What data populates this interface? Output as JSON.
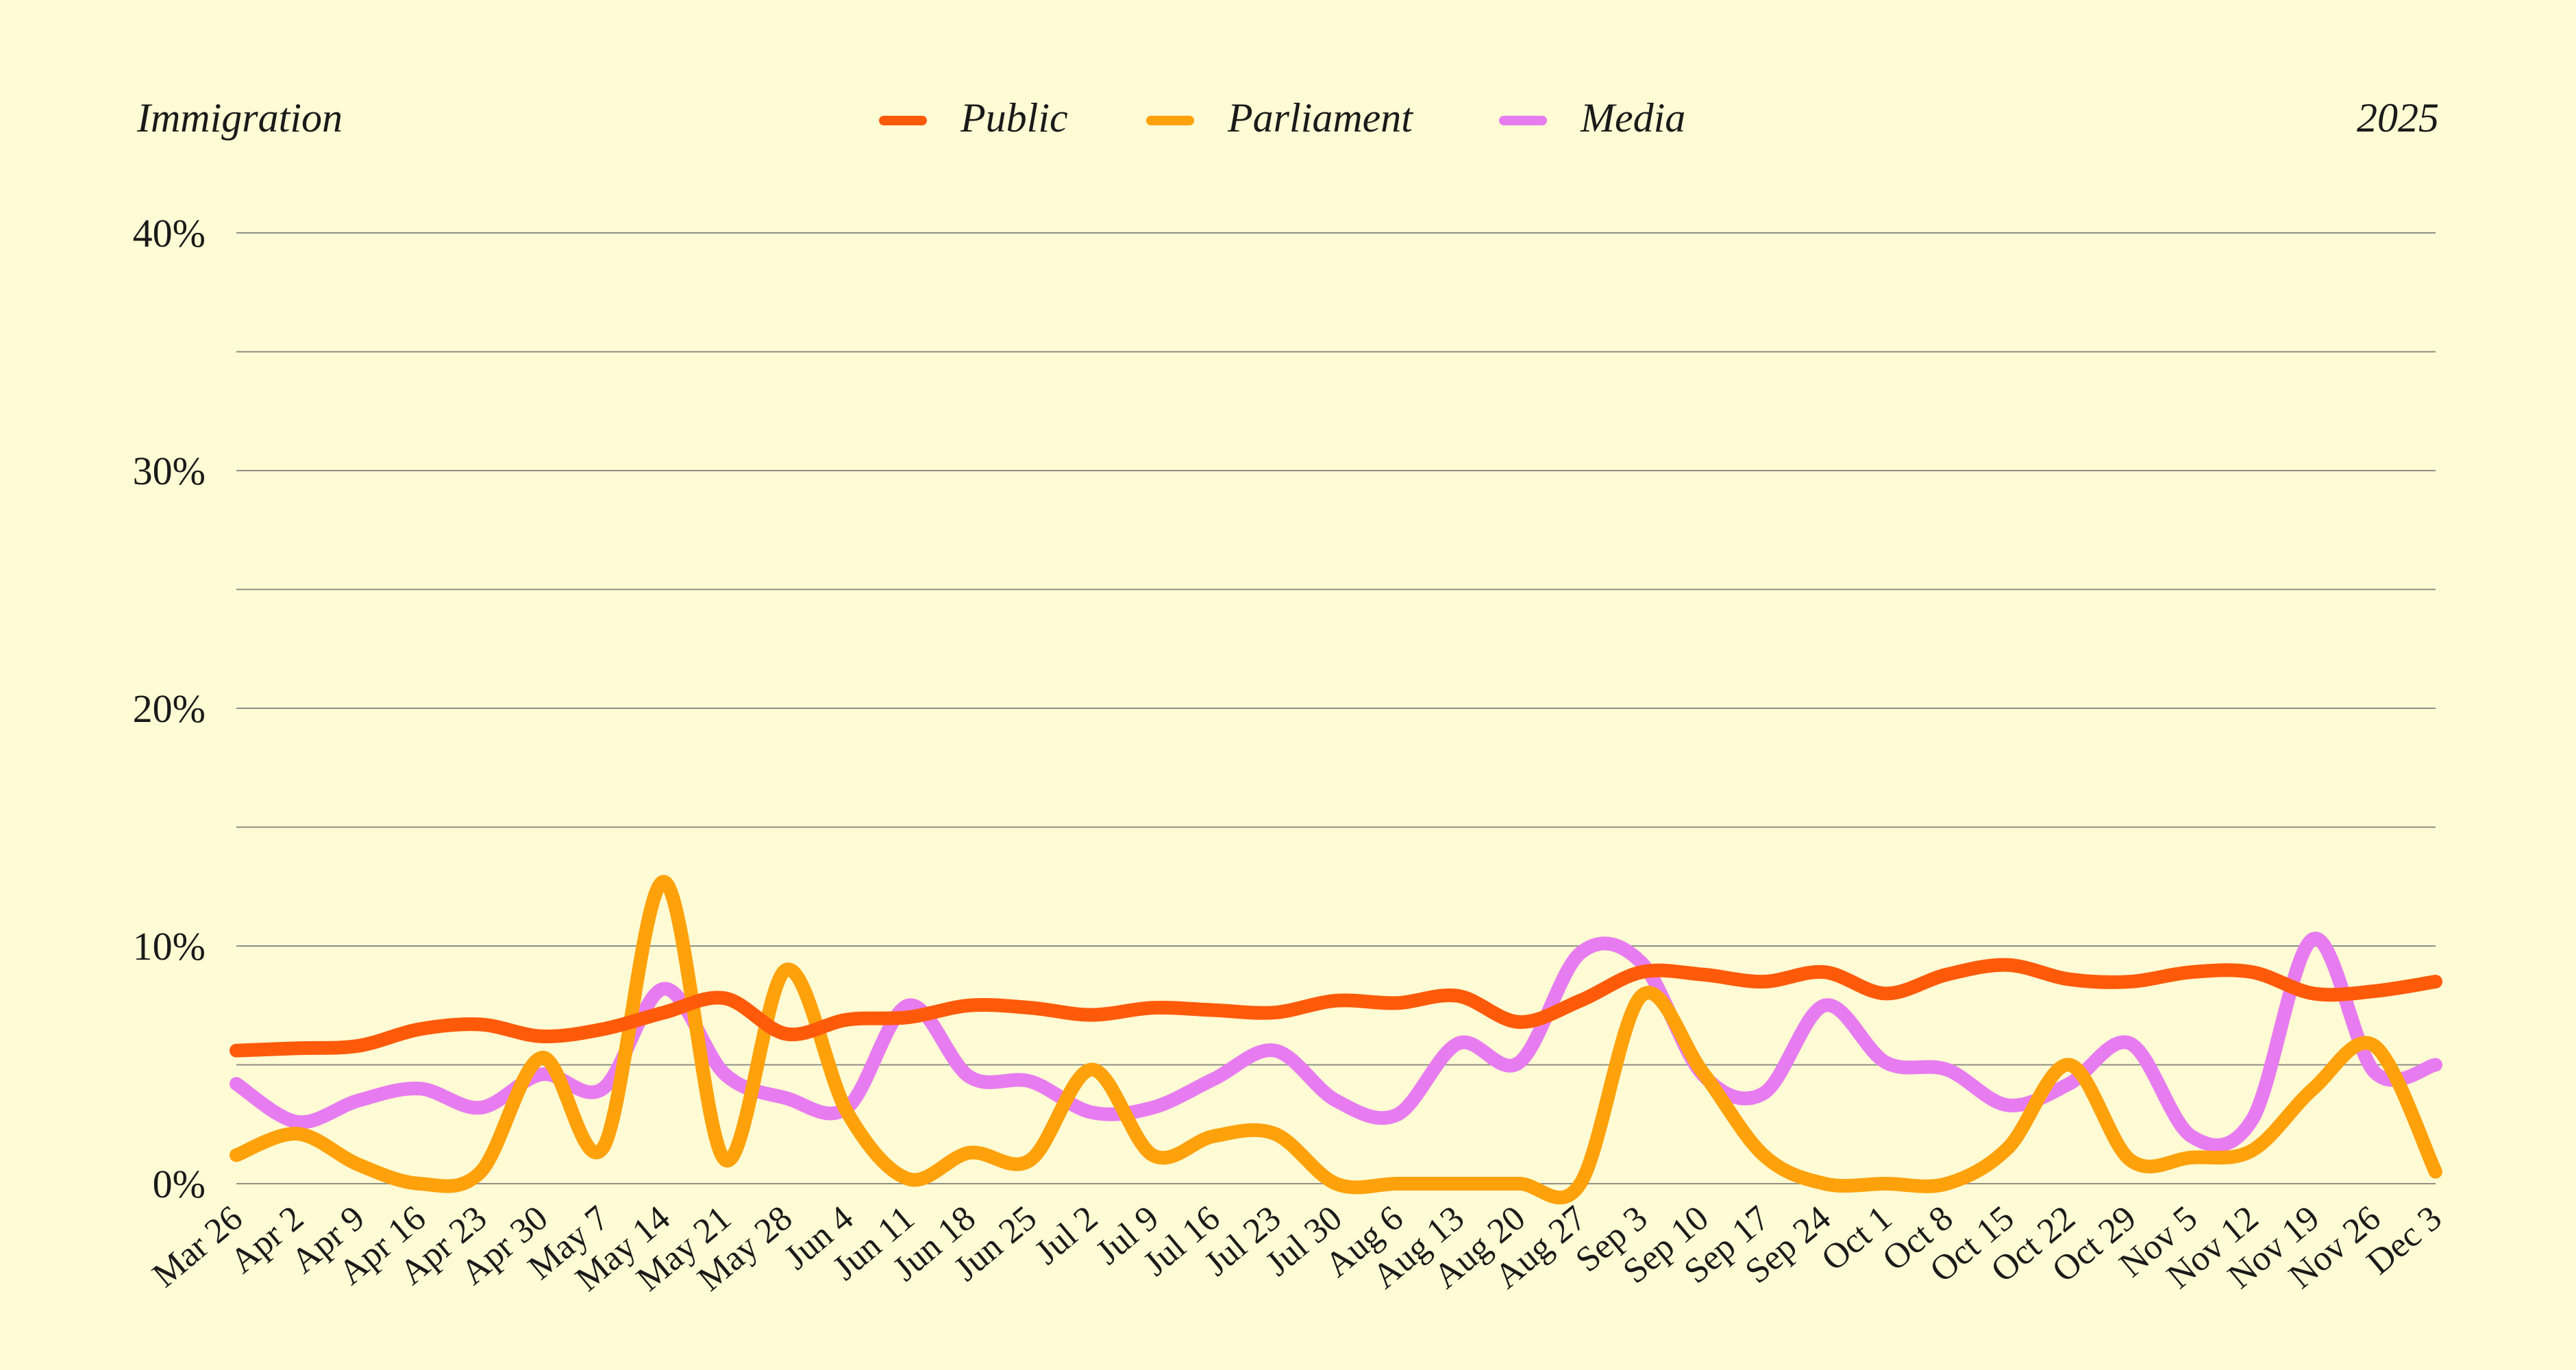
{
  "chart_data": {
    "type": "line",
    "title": "Immigration",
    "year_label": "2025",
    "ylim": [
      0,
      40
    ],
    "yticks": [
      0,
      10,
      20,
      30,
      40
    ],
    "ytick_labels": [
      "0%",
      "10%",
      "20%",
      "30%",
      "40%"
    ],
    "grid": true,
    "legend_position": "top-center",
    "categories": [
      "Mar 26",
      "Apr 2",
      "Apr 9",
      "Apr 16",
      "Apr 23",
      "Apr 30",
      "May 7",
      "May 14",
      "May 21",
      "May 28",
      "Jun 4",
      "Jun 11",
      "Jun 18",
      "Jun 25",
      "Jul 2",
      "Jul 9",
      "Jul 16",
      "Jul 23",
      "Jul 30",
      "Aug 6",
      "Aug 13",
      "Aug 20",
      "Aug 27",
      "Sep 3",
      "Sep 10",
      "Sep 17",
      "Sep 24",
      "Oct 1",
      "Oct 8",
      "Oct 15",
      "Oct 22",
      "Oct 29",
      "Nov 5",
      "Nov 12",
      "Nov 19",
      "Nov 26",
      "Dec 3"
    ],
    "series": [
      {
        "name": "Public",
        "color": "#ff5a0a",
        "values": [
          5.6,
          5.7,
          5.8,
          6.5,
          6.7,
          6.2,
          6.5,
          7.2,
          7.8,
          6.3,
          6.9,
          7.0,
          7.5,
          7.4,
          7.1,
          7.4,
          7.3,
          7.2,
          7.7,
          7.6,
          7.9,
          6.8,
          7.7,
          8.9,
          8.8,
          8.5,
          8.9,
          8.0,
          8.8,
          9.2,
          8.6,
          8.5,
          8.9,
          8.9,
          8.0,
          8.1,
          8.5
        ]
      },
      {
        "name": "Parliament",
        "color": "#ffa10a",
        "values": [
          1.2,
          2.1,
          0.8,
          0.0,
          0.5,
          5.3,
          1.5,
          12.7,
          1.0,
          9.0,
          3.0,
          0.2,
          1.3,
          1.0,
          4.8,
          1.2,
          2.0,
          2.1,
          0.0,
          0.0,
          0.0,
          0.0,
          0.0,
          7.9,
          4.7,
          1.2,
          0.0,
          0.0,
          0.0,
          1.5,
          5.0,
          1.0,
          1.1,
          1.4,
          4.0,
          5.8,
          0.5
        ]
      },
      {
        "name": "Media",
        "color": "#e77cf0",
        "values": [
          4.2,
          2.6,
          3.5,
          4.0,
          3.2,
          4.6,
          4.0,
          8.2,
          4.6,
          3.6,
          3.2,
          7.5,
          4.5,
          4.3,
          3.0,
          3.2,
          4.4,
          5.6,
          3.5,
          2.9,
          5.9,
          5.1,
          9.7,
          9.3,
          4.6,
          3.8,
          7.5,
          5.1,
          4.8,
          3.3,
          4.2,
          5.9,
          2.0,
          2.7,
          10.3,
          4.7,
          5.0
        ]
      }
    ]
  }
}
